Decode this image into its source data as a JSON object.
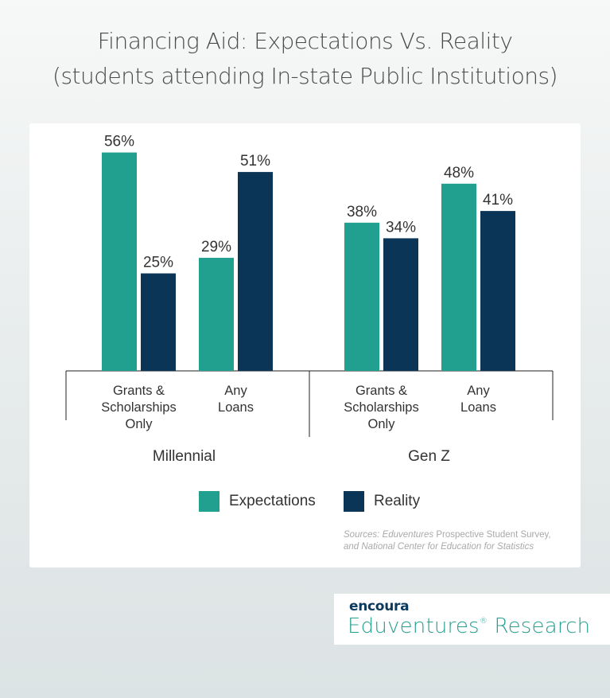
{
  "title": {
    "line1": "Financing Aid: Expectations Vs. Reality",
    "line2": "(students attending In-state Public Institutions)"
  },
  "colors": {
    "expectations": "#22a08f",
    "reality": "#0a3556",
    "axis": "#222222"
  },
  "chart_data": {
    "type": "bar",
    "groups": [
      {
        "name": "Millennial",
        "categories": [
          "Grants & Scholarships Only",
          "Any Loans"
        ],
        "series": [
          {
            "name": "Expectations",
            "values": [
              56,
              29
            ]
          },
          {
            "name": "Reality",
            "values": [
              25,
              51
            ]
          }
        ]
      },
      {
        "name": "Gen Z",
        "categories": [
          "Grants & Scholarships Only",
          "Any Loans"
        ],
        "series": [
          {
            "name": "Expectations",
            "values": [
              38,
              48
            ]
          },
          {
            "name": "Reality",
            "values": [
              34,
              41
            ]
          }
        ]
      }
    ],
    "category_label_lines": [
      [
        "Grants &",
        "Scholarships",
        "Only"
      ],
      [
        "Any",
        "Loans"
      ]
    ],
    "value_format": "{v}%",
    "ylim": [
      0,
      60
    ],
    "grid": false,
    "legend": "bottom-center"
  },
  "legend": {
    "expectations": "Expectations",
    "reality": "Reality"
  },
  "sources": {
    "prefix": "Sources: ",
    "name": "Eduventures",
    "line1_rest": " Prospective Student Survey,",
    "line2": "and National Center for Education for Statistics"
  },
  "brand": {
    "top": "encoura",
    "bottom": "Eduventures",
    "mark": "®",
    "bottom_rest": " Research"
  }
}
